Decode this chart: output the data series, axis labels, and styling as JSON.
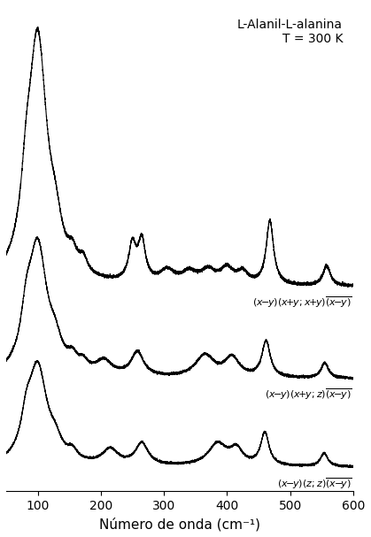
{
  "title_line1": "L-Alanil-L-alanina",
  "title_line2": "T = 300 K",
  "xlabel": "Número de onda (cm⁻¹)",
  "xlim": [
    50,
    600
  ],
  "background_color": "#ffffff",
  "offsets": [
    4.5,
    2.2,
    0.0
  ],
  "line_color": "#000000",
  "tick_fontsize": 10,
  "label_fontsize": 11,
  "title_fontsize": 10,
  "lw": 0.8
}
